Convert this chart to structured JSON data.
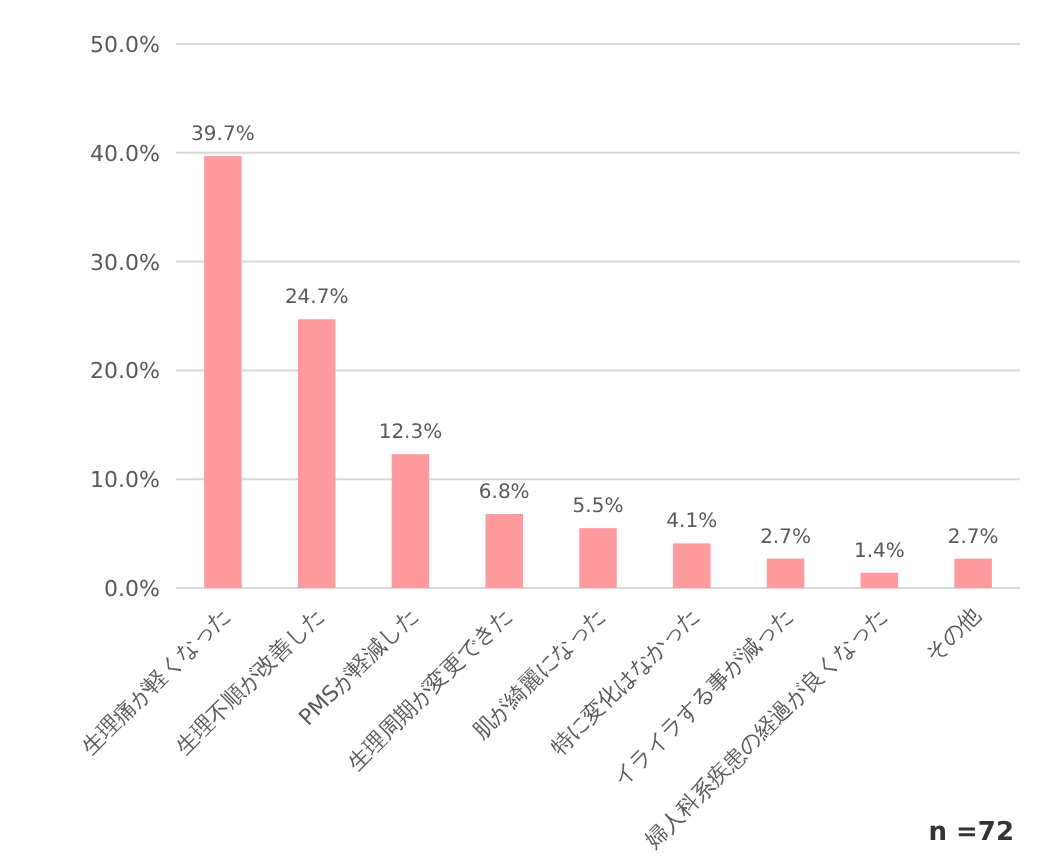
{
  "chart_data": {
    "type": "bar",
    "categories": [
      "生理痛が軽くなった",
      "生理不順が改善した",
      "PMSが軽減した",
      "生理周期が変更できた",
      "肌が綺麗になった",
      "特に変化はなかった",
      "イライラする事が減った",
      "婦人科系疾患の経過が良くなった",
      "その他"
    ],
    "values": [
      39.7,
      24.7,
      12.3,
      6.8,
      5.5,
      4.1,
      2.7,
      1.4,
      2.7
    ],
    "value_labels": [
      "39.7%",
      "24.7%",
      "12.3%",
      "6.8%",
      "5.5%",
      "4.1%",
      "2.7%",
      "1.4%",
      "2.7%"
    ],
    "color": "#ff9a9e",
    "ylim": [
      0,
      50
    ],
    "yticks": [
      {
        "value": 0,
        "label": "0.0%"
      },
      {
        "value": 10,
        "label": "10.0%"
      },
      {
        "value": 20,
        "label": "20.0%"
      },
      {
        "value": 30,
        "label": "30.0%"
      },
      {
        "value": 40,
        "label": "40.0%"
      },
      {
        "value": 50,
        "label": "50.0%"
      }
    ],
    "grid": "y",
    "annotations": [
      "n =72"
    ]
  }
}
